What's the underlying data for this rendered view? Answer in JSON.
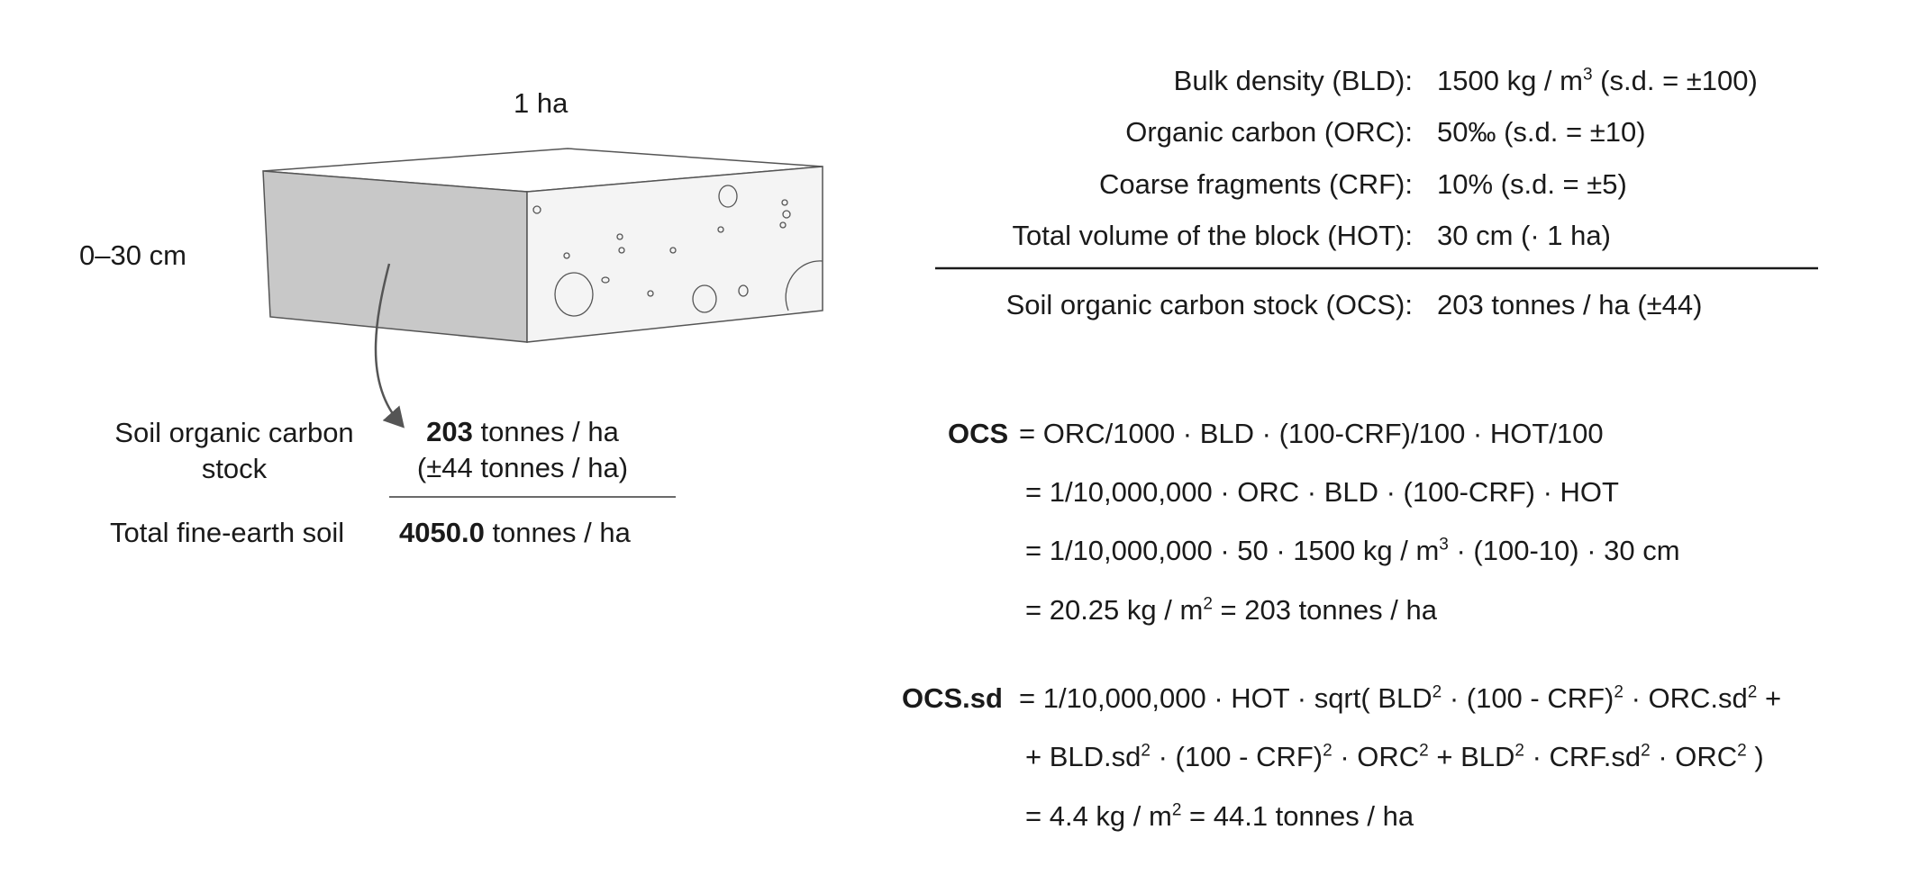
{
  "block": {
    "area_label": "1 ha",
    "depth_label": "0–30 cm"
  },
  "left_summary": {
    "ocs_label": "Soil organic carbon stock",
    "ocs_value": "203",
    "ocs_unit": " tonnes / ha",
    "ocs_sd": "(±44 tonnes / ha)",
    "fine_earth_label": "Total fine-earth soil",
    "fine_earth_value": "4050.0",
    "fine_earth_unit": " tonnes / ha"
  },
  "parameters": {
    "bld": {
      "label": "Bulk density (BLD):",
      "value_pre": "1500 kg / m",
      "value_sup": "3",
      "value_post": " (s.d. = ±100)"
    },
    "orc": {
      "label": "Organic carbon (ORC):",
      "value": "50‰ (s.d. = ±10)"
    },
    "crf": {
      "label": "Coarse fragments (CRF):",
      "value": "10% (s.d. = ±5)"
    },
    "hot": {
      "label": "Total volume of the block (HOT):",
      "value": "30 cm (· 1 ha)"
    },
    "ocs": {
      "label": "Soil organic carbon stock (OCS):",
      "value": "203 tonnes / ha (±44)"
    }
  },
  "formulas": {
    "ocs_label": "OCS",
    "ocs_line1": " = ORC/1000  · BLD  · (100-CRF)/100  · HOT/100",
    "ocs_line2": "= 1/10,000,000  · ORC  · BLD  · (100-CRF)  · HOT",
    "ocs_line3_pre": "= 1/10,000,000  · 50  · 1500 kg / m",
    "ocs_line3_sup": "3",
    "ocs_line3_post": "  · (100-10)  · 30 cm",
    "ocs_line4_pre": "= 20.25 kg / m",
    "ocs_line4_sup": "2",
    "ocs_line4_post": " = 203 tonnes / ha",
    "sd_label": "OCS.sd",
    "sd_line1_a": " = 1/10,000,000  · HOT  · sqrt( BLD",
    "sd_line1_b": "  · (100 - CRF)",
    "sd_line1_c": "  · ORC.sd",
    "sd_line1_d": " +",
    "sd_line2_a": "+ BLD.sd",
    "sd_line2_b": "  · (100 - CRF)",
    "sd_line2_c": "  · ORC",
    "sd_line2_d": " + BLD",
    "sd_line2_e": "  · CRF.sd",
    "sd_line2_f": "  · ORC",
    "sd_line2_g": " )",
    "sq": "2",
    "sd_line3_pre": "= 4.4 kg / m",
    "sd_line3_sup": "2",
    "sd_line3_post": " = 44.1 tonnes / ha"
  }
}
